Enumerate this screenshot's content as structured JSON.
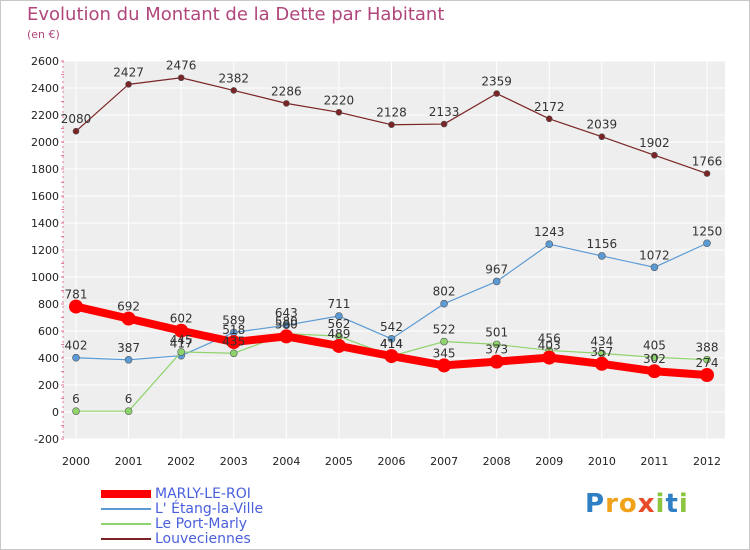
{
  "title": "Evolution du Montant de la Dette par Habitant",
  "subtitle": "(en €)",
  "logo_letters": [
    {
      "ch": "P",
      "color": "#2f7fc4"
    },
    {
      "ch": "r",
      "color": "#f0a21b"
    },
    {
      "ch": "o",
      "color": "#f0a21b"
    },
    {
      "ch": "x",
      "color": "#e84b2a"
    },
    {
      "ch": "i",
      "color": "#8cc63f"
    },
    {
      "ch": "t",
      "color": "#2f7fc4"
    },
    {
      "ch": "i",
      "color": "#8cc63f"
    }
  ],
  "chart_data": {
    "type": "line",
    "x": [
      "2000",
      "2001",
      "2002",
      "2003",
      "2004",
      "2005",
      "2006",
      "2007",
      "2008",
      "2009",
      "2010",
      "2011",
      "2012"
    ],
    "ylim": [
      -200,
      2600
    ],
    "y_ticks": [
      "-200",
      "0",
      "200",
      "400",
      "600",
      "800",
      "1000",
      "1200",
      "1400",
      "1600",
      "1800",
      "2000",
      "2200",
      "2400",
      "2600"
    ],
    "grid": true,
    "legend_position": "bottom-left",
    "series": [
      {
        "name": "Louveciennes",
        "color": "#7b2425",
        "width": 1.2,
        "marker": 3,
        "values": [
          2080,
          2427,
          2476,
          2382,
          2286,
          2220,
          2128,
          2133,
          2359,
          2172,
          2039,
          1902,
          1766
        ],
        "labels": [
          "2080",
          "2427",
          "2476",
          "2382",
          "2286",
          "2220",
          "2128",
          "2133",
          "2359",
          "2172",
          "2039",
          "1902",
          "1766"
        ]
      },
      {
        "name": "L' Étang-la-Ville",
        "color": "#5b9bd5",
        "width": 1.2,
        "marker": 3.5,
        "values": [
          402,
          387,
          417,
          589,
          643,
          711,
          542,
          802,
          967,
          1243,
          1156,
          1072,
          1250
        ],
        "labels": [
          "402",
          "387",
          "417",
          "589",
          "643",
          "711",
          "542",
          "802",
          "967",
          "1243",
          "1156",
          "1072",
          "1250"
        ]
      },
      {
        "name": "Le Port-Marly",
        "color": "#8ed36b",
        "width": 1.2,
        "marker": 3.5,
        "values": [
          6,
          6,
          445,
          435,
          580,
          562,
          414,
          522,
          501,
          456,
          434,
          405,
          388
        ],
        "labels": [
          "6",
          "6",
          "445",
          "435",
          "580",
          "562",
          "414",
          "522",
          "501",
          "456",
          "434",
          "405",
          "388"
        ]
      },
      {
        "name": "MARLY-LE-ROI",
        "color": "#ff0000",
        "width": 8,
        "marker": 7,
        "values": [
          781,
          692,
          602,
          518,
          560,
          489,
          414,
          345,
          373,
          403,
          357,
          302,
          274
        ],
        "labels": [
          "781",
          "692",
          "602",
          "518",
          "560",
          "489",
          "414",
          "345",
          "373",
          "403",
          "357",
          "302",
          "274"
        ]
      }
    ],
    "legend_order": [
      "MARLY-LE-ROI",
      "L' Étang-la-Ville",
      "Le Port-Marly",
      "Louveciennes"
    ]
  }
}
